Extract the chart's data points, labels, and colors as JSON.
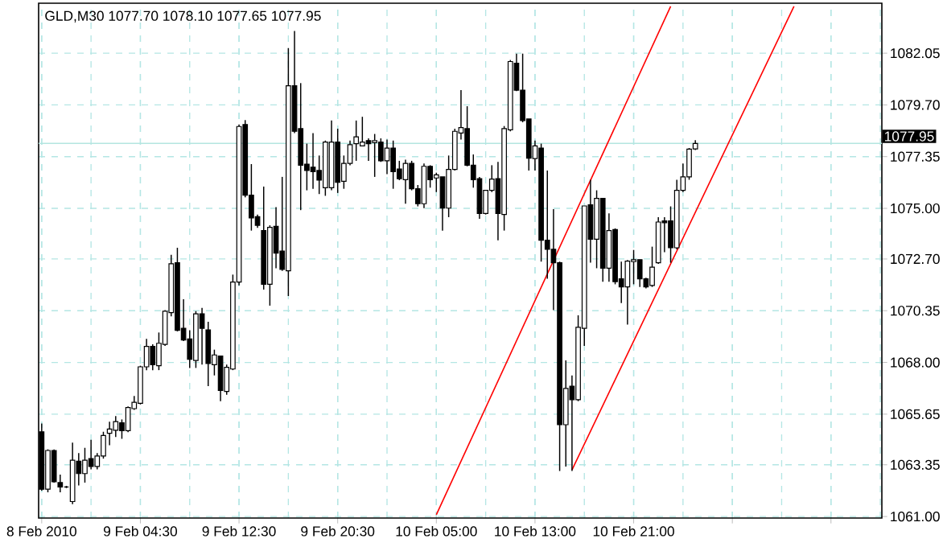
{
  "chart_data": {
    "type": "candlestick",
    "title": "GLD,M30 1077.70 1078.10 1077.65 1077.95",
    "categories": [
      "8 Feb 2010",
      null,
      null,
      null,
      null,
      null,
      null,
      null,
      null,
      null,
      null,
      null,
      null,
      null,
      null,
      null,
      "9 Feb 04:30",
      null,
      null,
      null,
      null,
      null,
      null,
      null,
      null,
      null,
      null,
      null,
      null,
      null,
      null,
      null,
      "9 Feb 12:30",
      null,
      null,
      null,
      null,
      null,
      null,
      null,
      null,
      null,
      null,
      null,
      null,
      null,
      null,
      null,
      "9 Feb 20:30",
      null,
      null,
      null,
      null,
      null,
      null,
      null,
      null,
      null,
      null,
      null,
      null,
      null,
      null,
      null,
      "10 Feb 05:00",
      null,
      null,
      null,
      null,
      null,
      null,
      null,
      null,
      null,
      null,
      null,
      null,
      null,
      null,
      null,
      "10 Feb 13:00",
      null,
      null,
      null,
      null,
      null,
      null,
      null,
      null,
      null,
      null,
      null,
      null,
      null,
      null,
      null,
      "10 Feb 21:00",
      null,
      null,
      null,
      null,
      null,
      null,
      null,
      null,
      null,
      null,
      null,
      null,
      null,
      null,
      null,
      null,
      null,
      null,
      null,
      null,
      null,
      null,
      null,
      null,
      null,
      null,
      null,
      null,
      null,
      null,
      null,
      null,
      null,
      null,
      null,
      null,
      null,
      null,
      null,
      null
    ],
    "ohlc": [
      [
        1064.85,
        1065.22,
        1062.17,
        1062.24
      ],
      [
        1062.24,
        1064.05,
        1062.1,
        1064.0
      ],
      [
        1064.0,
        1064.05,
        1062.54,
        1062.58
      ],
      [
        1062.54,
        1062.9,
        1062.1,
        1062.34
      ],
      [
        1062.34,
        1062.39,
        1062.29,
        1062.34
      ],
      [
        1061.68,
        1064.36,
        1061.56,
        1063.56
      ],
      [
        1063.51,
        1063.88,
        1062.41,
        1062.95
      ],
      [
        1062.95,
        1064.12,
        1062.54,
        1063.56
      ],
      [
        1063.63,
        1064.48,
        1063.14,
        1063.27
      ],
      [
        1063.27,
        1063.88,
        1063.14,
        1063.75
      ],
      [
        1063.75,
        1064.85,
        1063.63,
        1064.68
      ],
      [
        1064.78,
        1065.31,
        1064.24,
        1064.97
      ],
      [
        1064.92,
        1065.56,
        1064.61,
        1065.31
      ],
      [
        1065.26,
        1065.41,
        1064.53,
        1064.9
      ],
      [
        1064.9,
        1066.0,
        1064.83,
        1065.95
      ],
      [
        1065.9,
        1066.48,
        1065.85,
        1066.19
      ],
      [
        1066.14,
        1067.85,
        1066.09,
        1067.8
      ],
      [
        1067.8,
        1069.07,
        1067.65,
        1068.73
      ],
      [
        1068.73,
        1068.82,
        1067.65,
        1067.9
      ],
      [
        1067.85,
        1069.36,
        1067.65,
        1068.87
      ],
      [
        1068.82,
        1070.38,
        1068.75,
        1070.33
      ],
      [
        1070.26,
        1072.89,
        1070.09,
        1072.48
      ],
      [
        1072.53,
        1073.21,
        1069.41,
        1069.46
      ],
      [
        1069.55,
        1070.87,
        1068.97,
        1069.02
      ],
      [
        1069.07,
        1069.46,
        1067.75,
        1068.14
      ],
      [
        1068.09,
        1070.33,
        1067.75,
        1070.21
      ],
      [
        1070.21,
        1070.48,
        1067.9,
        1069.55
      ],
      [
        1069.48,
        1069.85,
        1066.92,
        1067.95
      ],
      [
        1067.9,
        1068.58,
        1067.41,
        1068.34
      ],
      [
        1068.29,
        1068.29,
        1066.24,
        1066.73
      ],
      [
        1066.68,
        1067.9,
        1066.53,
        1067.78
      ],
      [
        1067.7,
        1071.99,
        1067.65,
        1071.65
      ],
      [
        1071.65,
        1078.81,
        1071.5,
        1078.72
      ],
      [
        1078.81,
        1079.01,
        1075.5,
        1075.6
      ],
      [
        1075.6,
        1077.01,
        1073.99,
        1074.57
      ],
      [
        1074.62,
        1074.72,
        1074.11,
        1074.23
      ],
      [
        1073.99,
        1075.99,
        1071.31,
        1071.55
      ],
      [
        1071.55,
        1074.23,
        1070.58,
        1074.14
      ],
      [
        1074.18,
        1075.06,
        1072.28,
        1072.97
      ],
      [
        1073.06,
        1076.43,
        1072.16,
        1072.23
      ],
      [
        1072.16,
        1082.28,
        1071.02,
        1080.57
      ],
      [
        1080.57,
        1083.06,
        1078.42,
        1078.5
      ],
      [
        1078.62,
        1080.69,
        1074.92,
        1076.96
      ],
      [
        1077.01,
        1077.94,
        1075.82,
        1076.72
      ],
      [
        1076.87,
        1078.42,
        1075.89,
        1076.67
      ],
      [
        1076.72,
        1077.4,
        1075.65,
        1076.28
      ],
      [
        1075.94,
        1078.08,
        1075.57,
        1078.01
      ],
      [
        1075.94,
        1078.99,
        1075.82,
        1078.01
      ],
      [
        1078.01,
        1078.62,
        1075.7,
        1076.18
      ],
      [
        1076.23,
        1077.4,
        1075.89,
        1077.04
      ],
      [
        1077.04,
        1078.08,
        1076.96,
        1077.89
      ],
      [
        1077.94,
        1078.99,
        1077.16,
        1078.25
      ],
      [
        1077.84,
        1079.16,
        1077.84,
        1078.01
      ],
      [
        1078.08,
        1078.18,
        1077.16,
        1077.94
      ],
      [
        1077.99,
        1078.38,
        1076.43,
        1078.08
      ],
      [
        1078.01,
        1078.18,
        1077.11,
        1077.16
      ],
      [
        1077.16,
        1078.13,
        1076.55,
        1077.74
      ],
      [
        1077.74,
        1078.08,
        1075.89,
        1076.67
      ],
      [
        1076.79,
        1077.16,
        1076.28,
        1076.35
      ],
      [
        1076.3,
        1077.21,
        1075.21,
        1077.04
      ],
      [
        1077.04,
        1077.16,
        1075.82,
        1075.89
      ],
      [
        1075.89,
        1076.06,
        1075.09,
        1075.21
      ],
      [
        1075.21,
        1077.04,
        1075.01,
        1076.91
      ],
      [
        1076.91,
        1076.96,
        1075.94,
        1076.3
      ],
      [
        1076.38,
        1076.62,
        1075.74,
        1076.52
      ],
      [
        1076.43,
        1076.43,
        1073.99,
        1075.01
      ],
      [
        1075.01,
        1077.4,
        1074.6,
        1076.77
      ],
      [
        1076.77,
        1078.62,
        1076.72,
        1078.5
      ],
      [
        1078.42,
        1080.37,
        1078.13,
        1078.67
      ],
      [
        1078.62,
        1079.64,
        1076.91,
        1076.96
      ],
      [
        1076.96,
        1077.45,
        1075.94,
        1076.3
      ],
      [
        1076.35,
        1076.43,
        1074.53,
        1074.77
      ],
      [
        1074.77,
        1075.82,
        1074.72,
        1075.82
      ],
      [
        1075.82,
        1076.96,
        1075.74,
        1076.33
      ],
      [
        1076.35,
        1077.11,
        1073.55,
        1074.77
      ],
      [
        1074.72,
        1078.74,
        1073.99,
        1078.62
      ],
      [
        1078.57,
        1081.74,
        1078.5,
        1081.67
      ],
      [
        1081.59,
        1082.03,
        1080.33,
        1080.37
      ],
      [
        1080.37,
        1082.03,
        1078.91,
        1078.99
      ],
      [
        1079.06,
        1079.06,
        1076.72,
        1077.28
      ],
      [
        1077.26,
        1078.08,
        1076.72,
        1077.84
      ],
      [
        1077.74,
        1077.94,
        1072.58,
        1073.55
      ],
      [
        1073.55,
        1076.72,
        1071.8,
        1073.14
      ],
      [
        1073.14,
        1074.96,
        1070.38,
        1072.53
      ],
      [
        1072.53,
        1072.58,
        1063.07,
        1065.17
      ],
      [
        1065.17,
        1068.09,
        1063.27,
        1066.82
      ],
      [
        1066.92,
        1067.41,
        1063.07,
        1066.31
      ],
      [
        1066.31,
        1070.14,
        1066.24,
        1069.6
      ],
      [
        1069.55,
        1075.11,
        1068.75,
        1075.11
      ],
      [
        1075.16,
        1076.3,
        1072.53,
        1073.6
      ],
      [
        1073.6,
        1075.82,
        1072.28,
        1075.45
      ],
      [
        1075.45,
        1075.45,
        1071.67,
        1072.28
      ],
      [
        1072.28,
        1074.77,
        1071.67,
        1073.99
      ],
      [
        1074.04,
        1074.09,
        1071.55,
        1071.67
      ],
      [
        1071.8,
        1072.58,
        1070.7,
        1071.43
      ],
      [
        1071.43,
        1072.65,
        1069.72,
        1072.6
      ],
      [
        1072.58,
        1073.11,
        1071.55,
        1072.67
      ],
      [
        1072.67,
        1072.67,
        1071.43,
        1071.8
      ],
      [
        1071.8,
        1071.85,
        1071.36,
        1071.43
      ],
      [
        1071.5,
        1073.26,
        1071.43,
        1072.33
      ],
      [
        1072.53,
        1074.6,
        1072.48,
        1074.38
      ],
      [
        1074.43,
        1074.6,
        1073.01,
        1074.35
      ],
      [
        1074.43,
        1075.09,
        1072.53,
        1073.21
      ],
      [
        1073.21,
        1076.3,
        1073.14,
        1075.82
      ],
      [
        1075.82,
        1077.04,
        1075.74,
        1076.43
      ],
      [
        1076.43,
        1077.74,
        1076.3,
        1077.69
      ],
      [
        1077.7,
        1078.1,
        1077.65,
        1077.95
      ],
      null,
      null,
      null,
      null,
      null,
      null,
      null,
      null,
      null,
      null,
      null,
      null,
      null,
      null,
      null,
      null,
      null,
      null,
      null,
      null,
      null,
      null,
      null,
      null,
      null,
      null,
      null,
      null,
      null,
      null
    ],
    "series": [
      {
        "type": "line",
        "color": "#ff0000",
        "values": [
          null,
          null,
          null,
          null,
          null,
          null,
          null,
          null,
          null,
          null,
          null,
          null,
          null,
          null,
          null,
          null,
          null,
          null,
          null,
          null,
          null,
          null,
          null,
          null,
          null,
          null,
          null,
          null,
          null,
          null,
          null,
          null,
          null,
          null,
          null,
          null,
          null,
          null,
          null,
          null,
          null,
          null,
          null,
          null,
          null,
          null,
          null,
          null,
          null,
          null,
          null,
          null,
          null,
          null,
          null,
          null,
          null,
          null,
          null,
          null,
          null,
          null,
          null,
          null,
          1061.08,
          null,
          null,
          null,
          null,
          null,
          null,
          null,
          null,
          null,
          null,
          null,
          null,
          null,
          null,
          null,
          null,
          null,
          null,
          null,
          null,
          null,
          null,
          null,
          null,
          null,
          null,
          null,
          null,
          null,
          null,
          null,
          null,
          null,
          null,
          null,
          null,
          null,
          1084.18,
          null,
          null,
          null,
          null,
          null,
          null,
          null,
          null,
          null,
          null,
          null,
          null,
          null,
          null,
          null,
          null,
          null,
          null,
          null,
          null,
          null,
          null,
          null,
          null,
          null,
          null,
          null,
          null,
          null,
          null,
          null,
          null,
          null,
          null
        ]
      },
      {
        "type": "line",
        "color": "#ff0000",
        "values": [
          null,
          null,
          null,
          null,
          null,
          null,
          null,
          null,
          null,
          null,
          null,
          null,
          null,
          null,
          null,
          null,
          null,
          null,
          null,
          null,
          null,
          null,
          null,
          null,
          null,
          null,
          null,
          null,
          null,
          null,
          null,
          null,
          null,
          null,
          null,
          null,
          null,
          null,
          null,
          null,
          null,
          null,
          null,
          null,
          null,
          null,
          null,
          null,
          null,
          null,
          null,
          null,
          null,
          null,
          null,
          null,
          null,
          null,
          null,
          null,
          null,
          null,
          null,
          null,
          null,
          null,
          null,
          null,
          null,
          null,
          null,
          null,
          null,
          null,
          null,
          null,
          null,
          null,
          null,
          null,
          null,
          null,
          null,
          null,
          null,
          null,
          1063.12,
          null,
          null,
          null,
          null,
          null,
          null,
          null,
          null,
          null,
          null,
          null,
          null,
          null,
          null,
          null,
          null,
          null,
          null,
          null,
          null,
          null,
          null,
          null,
          null,
          null,
          null,
          null,
          null,
          null,
          null,
          null,
          null,
          null,
          null,
          null,
          1084.18,
          null,
          null,
          null,
          null,
          null,
          null,
          null,
          null,
          null,
          null,
          null,
          null,
          null,
          null
        ]
      }
    ],
    "ylim": [
      1060.93,
      1084.32
    ],
    "yticks": [
      {
        "value": 1061.0,
        "label": "1061.00"
      },
      {
        "value": 1063.35,
        "label": "1063.35"
      },
      {
        "value": 1065.65,
        "label": "1065.65"
      },
      {
        "value": 1068.0,
        "label": "1068.00"
      },
      {
        "value": 1070.35,
        "label": "1070.35"
      },
      {
        "value": 1072.7,
        "label": "1072.70"
      },
      {
        "value": 1075.0,
        "label": "1075.00"
      },
      {
        "value": 1077.35,
        "label": "1077.35"
      },
      {
        "value": 1079.7,
        "label": "1079.70"
      },
      {
        "value": 1082.05,
        "label": "1082.05"
      }
    ],
    "ref_lines": [
      {
        "axis": "y",
        "value": 1077.95,
        "label": "1077.95",
        "color": "#b4e6e0"
      }
    ],
    "grid": true
  }
}
